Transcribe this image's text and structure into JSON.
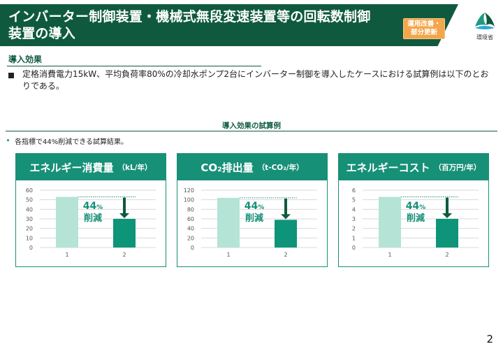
{
  "header": {
    "title_line1": "インバーター制御装置・機械式無段変速装置等の回転数制御",
    "title_line2": "装置の導入",
    "badge_line1": "運用改善・",
    "badge_line2": "部分更新",
    "logo_text": "環境省"
  },
  "section": {
    "title": "導入効果",
    "body": "定格消費電力15kW、平均負荷率80%の冷却水ポンプ2台にインバーター制御を導入したケースにおける試算例は以下のとおりである。"
  },
  "example": {
    "title": "導入効果の試算例",
    "note": "各指標で44%削減できる試算結果。"
  },
  "reduction": {
    "pct": "44",
    "pct_sign": "%",
    "label": "削減"
  },
  "colors": {
    "accent": "#179078",
    "dark": "#0f5a3f",
    "bar_before": "#b5e3d6",
    "bar_after": "#0e9478",
    "badge": "#f3a64a"
  },
  "chart_data": [
    {
      "type": "bar",
      "title": "エネルギー消費量",
      "unit": "（kL/年）",
      "categories": [
        "1",
        "2"
      ],
      "values": [
        53,
        30
      ],
      "ylim": [
        0,
        60
      ],
      "yticks": [
        "0",
        "10",
        "20",
        "30",
        "40",
        "50",
        "60"
      ],
      "grid": true
    },
    {
      "type": "bar",
      "title": "CO₂排出量",
      "unit": "（t-CO₂/年）",
      "categories": [
        "1",
        "2"
      ],
      "values": [
        104,
        58
      ],
      "ylim": [
        0,
        120
      ],
      "yticks": [
        "0",
        "20",
        "40",
        "60",
        "80",
        "100",
        "120"
      ],
      "grid": true
    },
    {
      "type": "bar",
      "title": "エネルギーコスト",
      "unit": "（百万円/年）",
      "categories": [
        "1",
        "2"
      ],
      "values": [
        5.3,
        3
      ],
      "ylim": [
        0,
        6
      ],
      "yticks": [
        "0",
        "1",
        "2",
        "3",
        "4",
        "5",
        "6"
      ],
      "grid": true
    }
  ],
  "page_number": "2"
}
